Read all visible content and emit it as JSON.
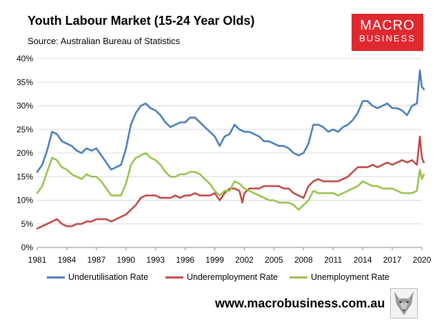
{
  "header": {
    "title": "Youth Labour Market (15-24 Year Olds)",
    "subtitle": "Source: Australian Bureau of Statistics"
  },
  "logo": {
    "line1": "MACRO",
    "line2": "BUSINESS",
    "color": "#e0282f"
  },
  "footer": {
    "url": "www.macrobusiness.com.au",
    "wolf_icon": "wolf-icon"
  },
  "chart_data": {
    "type": "line",
    "title": "Youth Labour Market (15-24 Year Olds)",
    "xlabel": "",
    "ylabel": "",
    "xlim": [
      1981,
      2020
    ],
    "ylim": [
      0,
      40
    ],
    "y_ticks": [
      0,
      5,
      10,
      15,
      20,
      25,
      30,
      35,
      40
    ],
    "y_tick_labels": [
      "0%",
      "5%",
      "10%",
      "15%",
      "20%",
      "25%",
      "30%",
      "35%",
      "40%"
    ],
    "x_ticks": [
      1981,
      1984,
      1987,
      1990,
      1993,
      1996,
      1999,
      2002,
      2005,
      2008,
      2011,
      2014,
      2017,
      2020
    ],
    "x_tick_labels": [
      "1981",
      "1984",
      "1987",
      "1990",
      "1993",
      "1996",
      "1999",
      "2002",
      "2005",
      "2008",
      "2011",
      "2014",
      "2017",
      "2020"
    ],
    "grid": "horizontal",
    "legend_position": "bottom",
    "series": [
      {
        "name": "Underutilisation Rate",
        "color": "#4a7ebb",
        "points": [
          [
            1981.0,
            16.0
          ],
          [
            1981.5,
            17.5
          ],
          [
            1982.0,
            20.5
          ],
          [
            1982.5,
            24.5
          ],
          [
            1983.0,
            24.0
          ],
          [
            1983.5,
            22.5
          ],
          [
            1984.0,
            22.0
          ],
          [
            1984.5,
            21.5
          ],
          [
            1985.0,
            20.5
          ],
          [
            1985.5,
            20.0
          ],
          [
            1986.0,
            21.0
          ],
          [
            1986.5,
            20.5
          ],
          [
            1987.0,
            21.0
          ],
          [
            1987.5,
            19.5
          ],
          [
            1988.0,
            18.0
          ],
          [
            1988.5,
            16.5
          ],
          [
            1989.0,
            17.0
          ],
          [
            1989.5,
            17.5
          ],
          [
            1990.0,
            21.0
          ],
          [
            1990.5,
            26.0
          ],
          [
            1991.0,
            28.5
          ],
          [
            1991.5,
            30.0
          ],
          [
            1992.0,
            30.5
          ],
          [
            1992.5,
            29.5
          ],
          [
            1993.0,
            29.0
          ],
          [
            1993.5,
            28.0
          ],
          [
            1994.0,
            26.5
          ],
          [
            1994.5,
            25.5
          ],
          [
            1995.0,
            26.0
          ],
          [
            1995.5,
            26.5
          ],
          [
            1996.0,
            26.5
          ],
          [
            1996.5,
            27.5
          ],
          [
            1997.0,
            27.5
          ],
          [
            1997.5,
            26.5
          ],
          [
            1998.0,
            25.5
          ],
          [
            1998.5,
            24.5
          ],
          [
            1999.0,
            23.5
          ],
          [
            1999.5,
            21.5
          ],
          [
            2000.0,
            23.5
          ],
          [
            2000.5,
            24.0
          ],
          [
            2001.0,
            26.0
          ],
          [
            2001.5,
            25.0
          ],
          [
            2002.0,
            24.5
          ],
          [
            2002.5,
            24.5
          ],
          [
            2003.0,
            24.0
          ],
          [
            2003.5,
            23.5
          ],
          [
            2004.0,
            22.5
          ],
          [
            2004.5,
            22.5
          ],
          [
            2005.0,
            22.0
          ],
          [
            2005.5,
            21.5
          ],
          [
            2006.0,
            21.5
          ],
          [
            2006.5,
            21.0
          ],
          [
            2007.0,
            20.0
          ],
          [
            2007.5,
            19.5
          ],
          [
            2008.0,
            20.0
          ],
          [
            2008.5,
            22.0
          ],
          [
            2009.0,
            26.0
          ],
          [
            2009.5,
            26.0
          ],
          [
            2010.0,
            25.5
          ],
          [
            2010.5,
            24.5
          ],
          [
            2011.0,
            25.0
          ],
          [
            2011.5,
            24.5
          ],
          [
            2012.0,
            25.5
          ],
          [
            2012.5,
            26.0
          ],
          [
            2013.0,
            27.0
          ],
          [
            2013.5,
            28.5
          ],
          [
            2014.0,
            31.0
          ],
          [
            2014.5,
            31.0
          ],
          [
            2015.0,
            30.0
          ],
          [
            2015.5,
            29.5
          ],
          [
            2016.0,
            30.0
          ],
          [
            2016.5,
            30.5
          ],
          [
            2017.0,
            29.5
          ],
          [
            2017.5,
            29.5
          ],
          [
            2018.0,
            29.0
          ],
          [
            2018.5,
            28.0
          ],
          [
            2019.0,
            30.0
          ],
          [
            2019.5,
            30.5
          ],
          [
            2019.8,
            37.5
          ],
          [
            2020.0,
            34.0
          ],
          [
            2020.2,
            33.5
          ]
        ]
      },
      {
        "name": "Underemployment Rate",
        "color": "#be4b48",
        "points": [
          [
            1981.0,
            4.0
          ],
          [
            1981.5,
            4.5
          ],
          [
            1982.0,
            5.0
          ],
          [
            1982.5,
            5.5
          ],
          [
            1983.0,
            6.0
          ],
          [
            1983.5,
            5.0
          ],
          [
            1984.0,
            4.5
          ],
          [
            1984.5,
            4.5
          ],
          [
            1985.0,
            5.0
          ],
          [
            1985.5,
            5.0
          ],
          [
            1986.0,
            5.5
          ],
          [
            1986.5,
            5.5
          ],
          [
            1987.0,
            6.0
          ],
          [
            1987.5,
            6.0
          ],
          [
            1988.0,
            6.0
          ],
          [
            1988.5,
            5.5
          ],
          [
            1989.0,
            6.0
          ],
          [
            1989.5,
            6.5
          ],
          [
            1990.0,
            7.0
          ],
          [
            1990.5,
            8.0
          ],
          [
            1991.0,
            9.0
          ],
          [
            1991.5,
            10.5
          ],
          [
            1992.0,
            11.0
          ],
          [
            1992.5,
            11.0
          ],
          [
            1993.0,
            11.0
          ],
          [
            1993.5,
            10.5
          ],
          [
            1994.0,
            10.5
          ],
          [
            1994.5,
            10.5
          ],
          [
            1995.0,
            11.0
          ],
          [
            1995.5,
            10.5
          ],
          [
            1996.0,
            11.0
          ],
          [
            1996.5,
            11.0
          ],
          [
            1997.0,
            11.5
          ],
          [
            1997.5,
            11.0
          ],
          [
            1998.0,
            11.0
          ],
          [
            1998.5,
            11.0
          ],
          [
            1999.0,
            11.5
          ],
          [
            1999.5,
            10.0
          ],
          [
            2000.0,
            11.5
          ],
          [
            2000.5,
            12.5
          ],
          [
            2001.0,
            12.5
          ],
          [
            2001.5,
            12.0
          ],
          [
            2001.8,
            9.5
          ],
          [
            2002.0,
            11.5
          ],
          [
            2002.5,
            12.5
          ],
          [
            2003.0,
            12.5
          ],
          [
            2003.5,
            12.5
          ],
          [
            2004.0,
            13.0
          ],
          [
            2004.5,
            13.0
          ],
          [
            2005.0,
            13.0
          ],
          [
            2005.5,
            13.0
          ],
          [
            2006.0,
            12.5
          ],
          [
            2006.5,
            12.5
          ],
          [
            2007.0,
            11.5
          ],
          [
            2007.5,
            11.0
          ],
          [
            2008.0,
            10.5
          ],
          [
            2008.5,
            13.0
          ],
          [
            2009.0,
            14.0
          ],
          [
            2009.5,
            14.5
          ],
          [
            2010.0,
            14.0
          ],
          [
            2010.5,
            14.0
          ],
          [
            2011.0,
            14.0
          ],
          [
            2011.5,
            14.0
          ],
          [
            2012.0,
            14.5
          ],
          [
            2012.5,
            15.0
          ],
          [
            2013.0,
            16.0
          ],
          [
            2013.5,
            17.0
          ],
          [
            2014.0,
            17.0
          ],
          [
            2014.5,
            17.0
          ],
          [
            2015.0,
            17.5
          ],
          [
            2015.5,
            17.0
          ],
          [
            2016.0,
            17.5
          ],
          [
            2016.5,
            18.0
          ],
          [
            2017.0,
            17.5
          ],
          [
            2017.5,
            18.0
          ],
          [
            2018.0,
            18.5
          ],
          [
            2018.5,
            18.0
          ],
          [
            2019.0,
            18.5
          ],
          [
            2019.5,
            17.5
          ],
          [
            2019.8,
            23.5
          ],
          [
            2020.0,
            19.0
          ],
          [
            2020.2,
            18.0
          ]
        ]
      },
      {
        "name": "Unemployment Rate",
        "color": "#98c34c",
        "points": [
          [
            1981.0,
            11.5
          ],
          [
            1981.5,
            13.0
          ],
          [
            1982.0,
            16.0
          ],
          [
            1982.5,
            19.0
          ],
          [
            1983.0,
            18.5
          ],
          [
            1983.5,
            17.0
          ],
          [
            1984.0,
            16.5
          ],
          [
            1984.5,
            15.5
          ],
          [
            1985.0,
            15.0
          ],
          [
            1985.5,
            14.5
          ],
          [
            1986.0,
            15.5
          ],
          [
            1986.5,
            15.0
          ],
          [
            1987.0,
            15.0
          ],
          [
            1987.5,
            14.0
          ],
          [
            1988.0,
            12.5
          ],
          [
            1988.5,
            11.0
          ],
          [
            1989.0,
            11.0
          ],
          [
            1989.5,
            11.0
          ],
          [
            1990.0,
            13.5
          ],
          [
            1990.5,
            17.5
          ],
          [
            1991.0,
            19.0
          ],
          [
            1991.5,
            19.5
          ],
          [
            1992.0,
            20.0
          ],
          [
            1992.5,
            19.0
          ],
          [
            1993.0,
            18.5
          ],
          [
            1993.5,
            17.5
          ],
          [
            1994.0,
            16.0
          ],
          [
            1994.5,
            15.0
          ],
          [
            1995.0,
            15.0
          ],
          [
            1995.5,
            15.5
          ],
          [
            1996.0,
            15.5
          ],
          [
            1996.5,
            16.0
          ],
          [
            1997.0,
            16.0
          ],
          [
            1997.5,
            15.5
          ],
          [
            1998.0,
            14.5
          ],
          [
            1998.5,
            13.5
          ],
          [
            1999.0,
            12.0
          ],
          [
            1999.5,
            11.0
          ],
          [
            2000.0,
            12.0
          ],
          [
            2000.5,
            12.0
          ],
          [
            2001.0,
            14.0
          ],
          [
            2001.5,
            13.5
          ],
          [
            2002.0,
            12.5
          ],
          [
            2002.5,
            12.0
          ],
          [
            2003.0,
            11.5
          ],
          [
            2003.5,
            11.0
          ],
          [
            2004.0,
            10.5
          ],
          [
            2004.5,
            10.0
          ],
          [
            2005.0,
            10.0
          ],
          [
            2005.5,
            9.5
          ],
          [
            2006.0,
            9.5
          ],
          [
            2006.5,
            9.5
          ],
          [
            2007.0,
            9.0
          ],
          [
            2007.5,
            8.0
          ],
          [
            2008.0,
            9.0
          ],
          [
            2008.5,
            10.0
          ],
          [
            2009.0,
            12.0
          ],
          [
            2009.5,
            11.5
          ],
          [
            2010.0,
            11.5
          ],
          [
            2010.5,
            11.5
          ],
          [
            2011.0,
            11.5
          ],
          [
            2011.5,
            11.0
          ],
          [
            2012.0,
            11.5
          ],
          [
            2012.5,
            12.0
          ],
          [
            2013.0,
            12.5
          ],
          [
            2013.5,
            13.0
          ],
          [
            2014.0,
            14.0
          ],
          [
            2014.5,
            13.5
          ],
          [
            2015.0,
            13.0
          ],
          [
            2015.5,
            13.0
          ],
          [
            2016.0,
            12.5
          ],
          [
            2016.5,
            12.5
          ],
          [
            2017.0,
            12.5
          ],
          [
            2017.5,
            12.0
          ],
          [
            2018.0,
            11.5
          ],
          [
            2018.5,
            11.5
          ],
          [
            2019.0,
            11.5
          ],
          [
            2019.5,
            12.0
          ],
          [
            2019.8,
            16.5
          ],
          [
            2020.0,
            14.5
          ],
          [
            2020.2,
            15.5
          ]
        ]
      }
    ]
  }
}
